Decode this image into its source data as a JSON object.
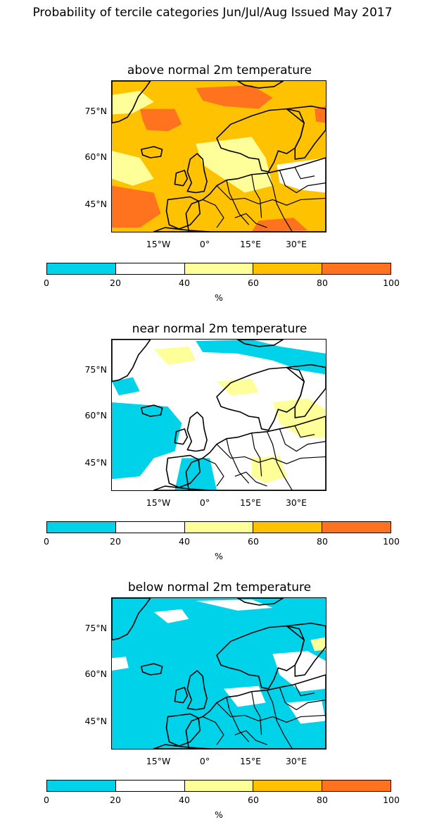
{
  "title": "Probability of tercile categories Jun/Jul/Aug Issued May 2017",
  "colors": {
    "below_20": "#00d3e9",
    "band_20_40": "#ffffff",
    "band_40_60": "#ffff99",
    "band_60_80": "#ffc200",
    "above_80": "#ff731f",
    "coast": "#000000"
  },
  "panels": [
    {
      "title": "above normal 2m temperature",
      "background": "band_60_80"
    },
    {
      "title": "near normal 2m temperature",
      "background": "band_20_40"
    },
    {
      "title": "below normal 2m temperature",
      "background": "below_20"
    }
  ],
  "lat_labels": [
    "75°N",
    "60°N",
    "45°N"
  ],
  "lon_labels": [
    "15°W",
    "0°",
    "15°E",
    "30°E"
  ],
  "colorbar": {
    "ticks": [
      "0",
      "20",
      "40",
      "60",
      "80",
      "100"
    ],
    "label": "%",
    "bands": [
      "below_20",
      "band_20_40",
      "band_40_60",
      "band_60_80",
      "above_80"
    ]
  }
}
